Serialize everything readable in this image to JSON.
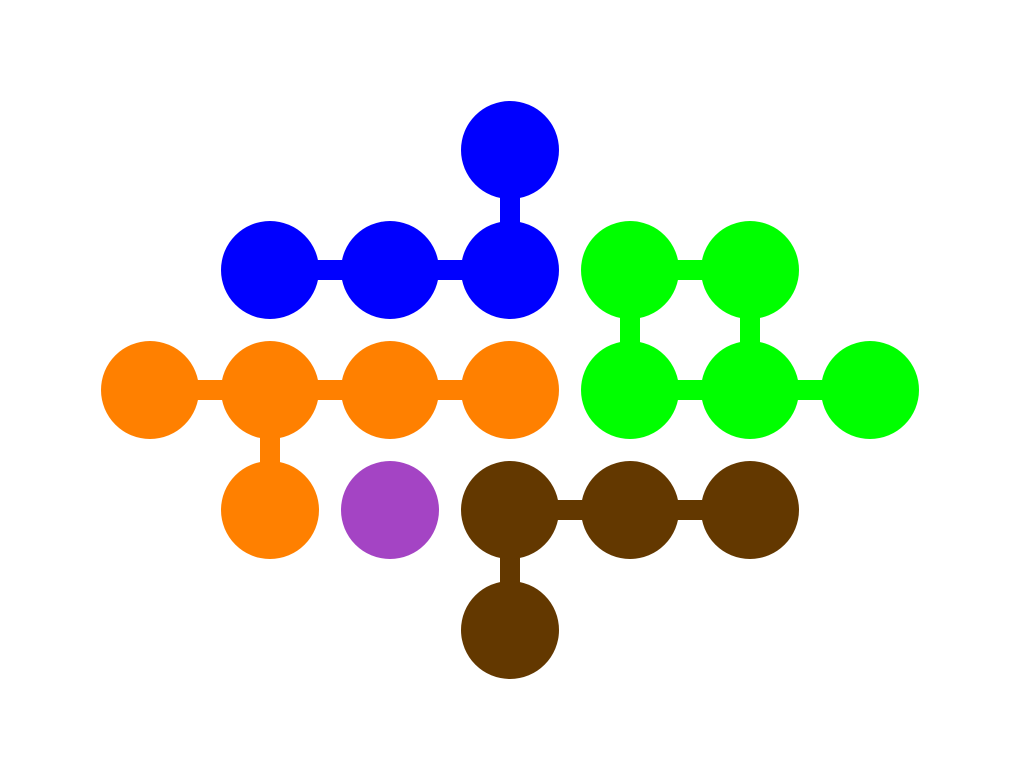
{
  "pieces": [
    {
      "name": "blue",
      "color": "#0000ff",
      "cells": [
        [
          3,
          0
        ],
        [
          1,
          1
        ],
        [
          2,
          1
        ],
        [
          3,
          1
        ]
      ],
      "links": [
        [
          [
            3,
            0
          ],
          [
            3,
            1
          ]
        ],
        [
          [
            1,
            1
          ],
          [
            2,
            1
          ]
        ],
        [
          [
            2,
            1
          ],
          [
            3,
            1
          ]
        ]
      ]
    },
    {
      "name": "green",
      "color": "#00ff00",
      "cells": [
        [
          4,
          1
        ],
        [
          5,
          1
        ],
        [
          4,
          2
        ],
        [
          5,
          2
        ],
        [
          6,
          2
        ]
      ],
      "links": [
        [
          [
            4,
            1
          ],
          [
            5,
            1
          ]
        ],
        [
          [
            4,
            1
          ],
          [
            4,
            2
          ]
        ],
        [
          [
            5,
            1
          ],
          [
            5,
            2
          ]
        ],
        [
          [
            4,
            2
          ],
          [
            5,
            2
          ]
        ],
        [
          [
            5,
            2
          ],
          [
            6,
            2
          ]
        ]
      ]
    },
    {
      "name": "orange",
      "color": "#ff8000",
      "cells": [
        [
          0,
          2
        ],
        [
          1,
          2
        ],
        [
          2,
          2
        ],
        [
          3,
          2
        ],
        [
          1,
          3
        ]
      ],
      "links": [
        [
          [
            0,
            2
          ],
          [
            1,
            2
          ]
        ],
        [
          [
            1,
            2
          ],
          [
            2,
            2
          ]
        ],
        [
          [
            2,
            2
          ],
          [
            3,
            2
          ]
        ],
        [
          [
            1,
            2
          ],
          [
            1,
            3
          ]
        ]
      ]
    },
    {
      "name": "purple",
      "color": "#a444c4",
      "cells": [
        [
          2,
          3
        ]
      ],
      "links": []
    },
    {
      "name": "brown",
      "color": "#633800",
      "cells": [
        [
          3,
          3
        ],
        [
          4,
          3
        ],
        [
          5,
          3
        ],
        [
          3,
          4
        ]
      ],
      "links": [
        [
          [
            3,
            3
          ],
          [
            4,
            3
          ]
        ],
        [
          [
            4,
            3
          ],
          [
            5,
            3
          ]
        ],
        [
          [
            3,
            3
          ],
          [
            3,
            4
          ]
        ]
      ]
    }
  ]
}
